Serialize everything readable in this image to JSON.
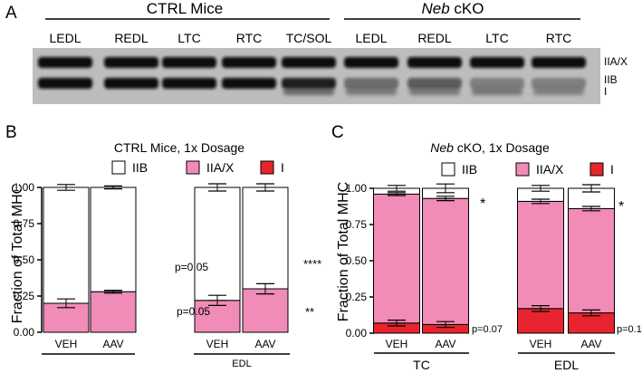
{
  "panel_a": {
    "label": "A",
    "group_ctrl": "CTRL Mice",
    "group_neb_italic": "Neb",
    "group_neb_rest": " cKO",
    "lanes": [
      "LEDL",
      "REDL",
      "LTC",
      "RTC",
      "TC/SOL",
      "LEDL",
      "REDL",
      "LTC",
      "RTC"
    ],
    "band_labels": [
      "IIA/X",
      "IIB",
      "I"
    ]
  },
  "colors": {
    "IIB": "#ffffff",
    "IIA/X": "#f08cb7",
    "I": "#e8252e"
  },
  "chart_data": [
    {
      "type": "bar",
      "stacked": true,
      "panel_label": "B",
      "title": "CTRL Mice, 1x Dosage",
      "ylabel": "Fraction of Total MHC",
      "ylim": [
        0,
        1.0
      ],
      "yticks": [
        "0.00",
        "0.25",
        "0.50",
        "0.75",
        "1.00"
      ],
      "legend": [
        "IIB",
        "IIA/X",
        "I"
      ],
      "categories": [
        "VEH",
        "AAV",
        "VEH",
        "AAV"
      ],
      "groups": [
        "",
        "EDL"
      ],
      "series": [
        {
          "name": "I",
          "values": [
            0,
            0,
            0,
            0
          ]
        },
        {
          "name": "IIA/X",
          "values": [
            0.2,
            0.28,
            0.22,
            0.3
          ],
          "errors": [
            0.03,
            0.01,
            0.035,
            0.035
          ]
        },
        {
          "name": "IIB",
          "values": [
            0.8,
            0.72,
            0.78,
            0.7
          ],
          "errors": [
            0.02,
            0.01,
            0.025,
            0.025
          ]
        }
      ],
      "annotations": [
        "p=0.05",
        "p=0.05",
        "****",
        "**"
      ]
    },
    {
      "type": "bar",
      "stacked": true,
      "panel_label": "C",
      "title_italic": "Neb",
      "title_rest": " cKO, 1x Dosage",
      "ylabel": "Fraction of Total MHC",
      "ylim": [
        0,
        1.0
      ],
      "yticks": [
        "0.00",
        "0.25",
        "0.50",
        "0.75",
        "1.00"
      ],
      "legend": [
        "IIB",
        "IIA/X",
        "I"
      ],
      "categories": [
        "VEH",
        "AAV",
        "VEH",
        "AAV"
      ],
      "groups": [
        "TC",
        "EDL"
      ],
      "series": [
        {
          "name": "I",
          "values": [
            0.07,
            0.06,
            0.17,
            0.14
          ],
          "errors": [
            0.02,
            0.02,
            0.02,
            0.02
          ]
        },
        {
          "name": "IIA/X",
          "values": [
            0.89,
            0.87,
            0.74,
            0.72
          ],
          "errors": [
            0.01,
            0.015,
            0.015,
            0.015
          ]
        },
        {
          "name": "IIB",
          "values": [
            0.04,
            0.07,
            0.09,
            0.14
          ],
          "errors": [
            0.02,
            0.03,
            0.02,
            0.025
          ]
        }
      ],
      "annotations": [
        "*",
        "*",
        "p=0.07",
        "p=0.1"
      ]
    }
  ]
}
